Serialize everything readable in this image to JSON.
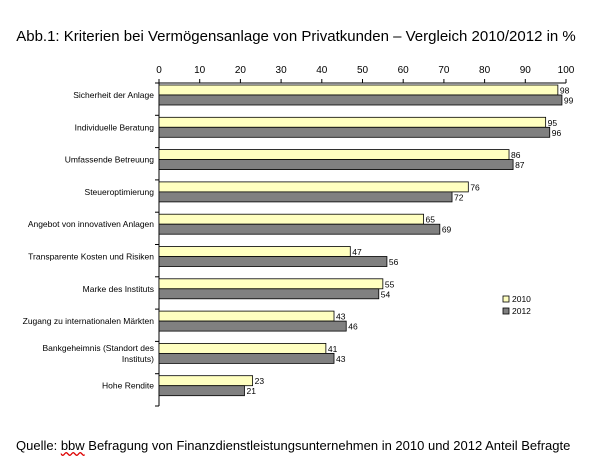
{
  "title": "Abb.1: Kriterien bei Vermögensanlage von Privatkunden – Vergleich 2010/2012 in %",
  "source": {
    "prefix": "Quelle: ",
    "org": "bbw",
    "rest": " Befragung von Finanzdienstleistungsunternehmen  in 2010  und 2012  Anteil Befragte"
  },
  "colors": {
    "series_2010": "#ffffc0",
    "series_2012": "#808080",
    "border": "#000000"
  },
  "chart_data": {
    "type": "bar",
    "orientation": "horizontal",
    "title": "Abb.1: Kriterien bei Vermögensanlage von Privatkunden – Vergleich 2010/2012 in %",
    "xlim": [
      0,
      100
    ],
    "ticks": [
      0,
      10,
      20,
      30,
      40,
      50,
      60,
      70,
      80,
      90,
      100
    ],
    "grid": false,
    "legend": "right",
    "categories": [
      [
        "Sicherheit der Anlage"
      ],
      [
        "Individuelle Beratung"
      ],
      [
        "Umfassende Betreuung"
      ],
      [
        "Steueroptimierung"
      ],
      [
        "Angebot von innovativen Anlagen"
      ],
      [
        "Transparente Kosten und Risiken"
      ],
      [
        "Marke des Instituts"
      ],
      [
        "Zugang zu internationalen Märkten"
      ],
      [
        "Bankgeheimnis (Standort des",
        "Instituts)"
      ],
      [
        "Hohe Rendite"
      ]
    ],
    "series": [
      {
        "name": "2010",
        "values": [
          98,
          95,
          86,
          76,
          65,
          47,
          55,
          43,
          41,
          23
        ]
      },
      {
        "name": "2012",
        "values": [
          99,
          96,
          87,
          72,
          69,
          56,
          54,
          46,
          43,
          21
        ]
      }
    ]
  }
}
